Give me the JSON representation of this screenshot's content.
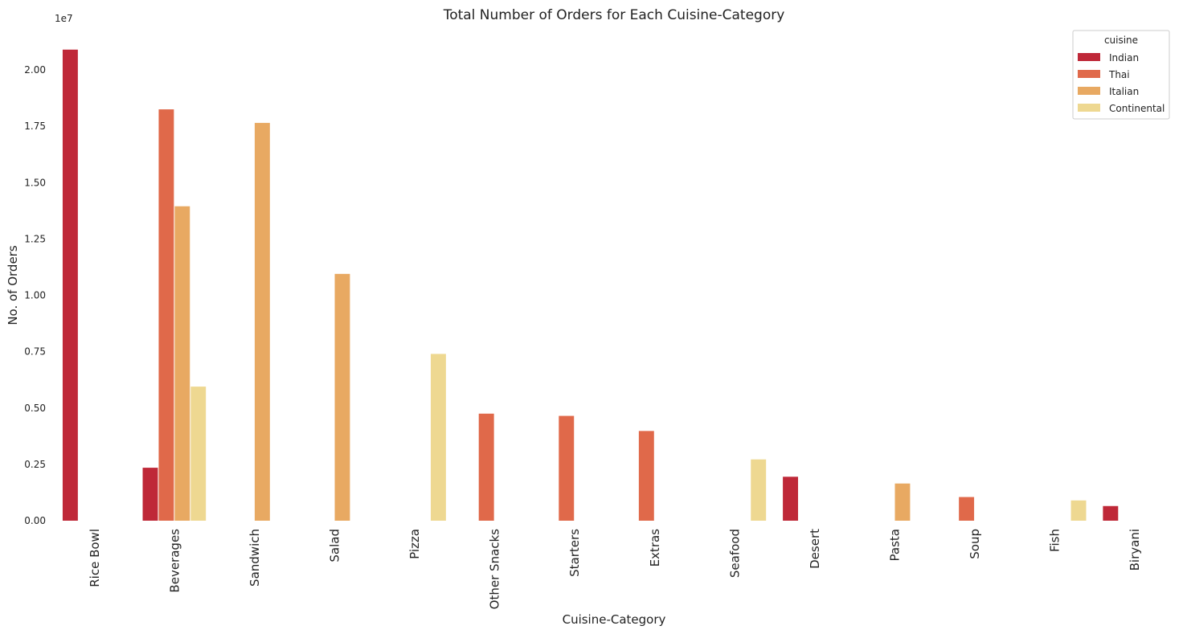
{
  "chart_data": {
    "type": "bar",
    "title": "Total Number of Orders for Each Cuisine-Category",
    "xlabel": "Cuisine-Category",
    "ylabel": "No. of Orders",
    "y_offset_label": "1e7",
    "y_scale": 10000000,
    "ylim": [
      0,
      21500000
    ],
    "yticks": [
      0,
      2500000,
      5000000,
      7500000,
      10000000,
      12500000,
      15000000,
      17500000,
      20000000
    ],
    "ytick_labels": [
      "0.00",
      "0.25",
      "0.50",
      "0.75",
      "1.00",
      "1.25",
      "1.50",
      "1.75",
      "2.00"
    ],
    "grid": false,
    "legend_title": "cuisine",
    "legend_position": "top-right",
    "categories": [
      "Rice Bowl",
      "Beverages",
      "Sandwich",
      "Salad",
      "Pizza",
      "Other Snacks",
      "Starters",
      "Extras",
      "Seafood",
      "Desert",
      "Pasta",
      "Soup",
      "Fish",
      "Biryani"
    ],
    "series": [
      {
        "name": "Indian",
        "color": "#bf2838",
        "values": [
          20900000,
          2350000,
          null,
          null,
          null,
          null,
          null,
          null,
          null,
          1950000,
          null,
          null,
          null,
          650000
        ]
      },
      {
        "name": "Thai",
        "color": "#e0694a",
        "values": [
          null,
          18250000,
          null,
          null,
          null,
          4750000,
          4650000,
          3980000,
          null,
          null,
          null,
          1050000,
          null,
          null
        ]
      },
      {
        "name": "Italian",
        "color": "#e8a962",
        "values": [
          null,
          13950000,
          17650000,
          10950000,
          null,
          null,
          null,
          null,
          null,
          null,
          1650000,
          null,
          null,
          null
        ]
      },
      {
        "name": "Continental",
        "color": "#eed891",
        "values": [
          null,
          5950000,
          null,
          null,
          7400000,
          null,
          null,
          null,
          2720000,
          null,
          null,
          null,
          900000,
          null
        ]
      }
    ]
  }
}
